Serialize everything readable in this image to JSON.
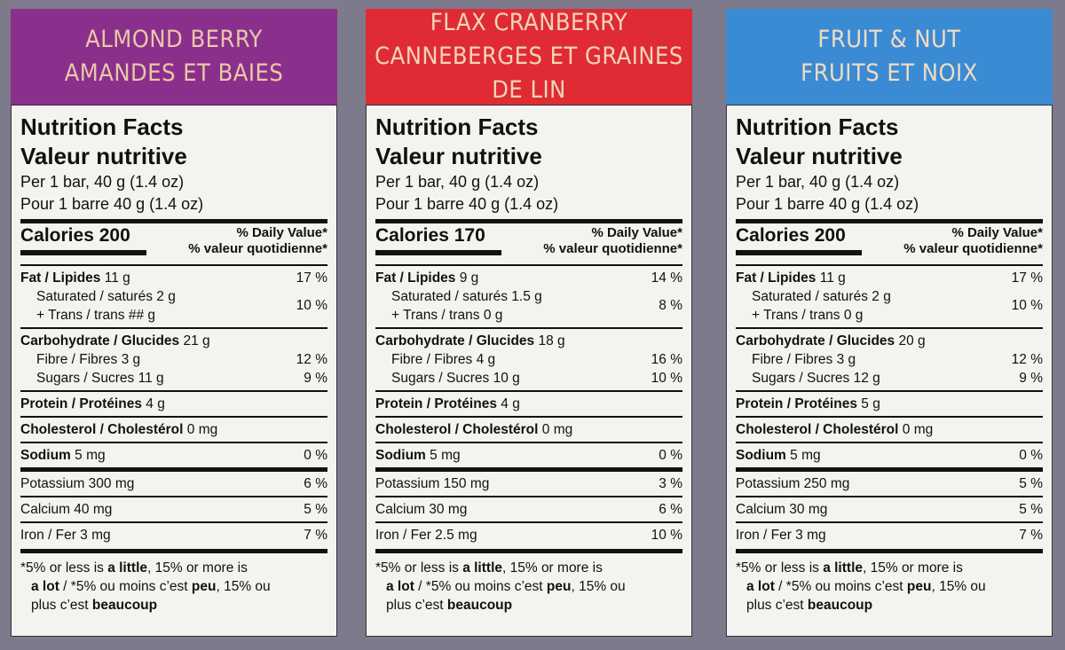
{
  "panels": [
    {
      "banner_color": "#8b2f8c",
      "banner_text_color": "#e8c9a5",
      "flavor_en": "ALMOND BERRY",
      "flavor_fr": "AMANDES ET BAIES",
      "title_en": "Nutrition Facts",
      "title_fr": "Valeur nutritive",
      "serving_en": "Per 1 bar, 40 g (1.4 oz)",
      "serving_fr": "Pour 1 barre 40 g (1.4 oz)",
      "calories": "Calories 200",
      "dv_en": "% Daily Value*",
      "dv_fr": "% valeur quotidienne*",
      "fat_label": "Fat / Lipides",
      "fat": "11 g",
      "fat_dv": "17 %",
      "sat_label": "Saturated / saturés",
      "sat": "2 g",
      "trans_label": "+ Trans / trans",
      "trans": "## g",
      "sat_trans_dv": "10 %",
      "carb_label": "Carbohydrate / Glucides",
      "carb": "21 g",
      "fibre_label": "Fibre / Fibres",
      "fibre": "3 g",
      "fibre_dv": "12 %",
      "sugars_label": "Sugars / Sucres",
      "sugars": "11 g",
      "sugars_dv": "9 %",
      "protein_label": "Protein / Protéines",
      "protein": "4 g",
      "chol_label": "Cholesterol / Cholestérol",
      "chol": "0 mg",
      "sodium_label": "Sodium",
      "sodium": "5 mg",
      "sodium_dv": "0 %",
      "potassium": "Potassium 300 mg",
      "potassium_dv": "6 %",
      "calcium": "Calcium 40 mg",
      "calcium_dv": "5 %",
      "iron": "Iron / Fer 3 mg",
      "iron_dv": "7 %",
      "foot1_a": "*5% or less is ",
      "foot1_b": "a little",
      "foot1_c": ", 15% or more is",
      "foot2_a": "a lot",
      "foot2_b": " / *5% ou moins c’est ",
      "foot2_c": "peu",
      "foot2_d": ", 15% ou",
      "foot3_a": "plus c’est ",
      "foot3_b": "beaucoup"
    },
    {
      "banner_color": "#e02b35",
      "banner_text_color": "#f1d6b6",
      "flavor_en": "FLAX CRANBERRY",
      "flavor_fr": "CANNEBERGES ET GRAINES DE LIN",
      "title_en": "Nutrition Facts",
      "title_fr": "Valeur nutritive",
      "serving_en": "Per 1 bar, 40 g (1.4 oz)",
      "serving_fr": "Pour 1 barre 40 g (1.4 oz)",
      "calories": "Calories 170",
      "dv_en": "% Daily Value*",
      "dv_fr": "% valeur quotidienne*",
      "fat_label": "Fat / Lipides",
      "fat": "9 g",
      "fat_dv": "14 %",
      "sat_label": "Saturated / saturés",
      "sat": "1.5 g",
      "trans_label": "+ Trans / trans",
      "trans": "0 g",
      "sat_trans_dv": "8 %",
      "carb_label": "Carbohydrate / Glucides",
      "carb": "18 g",
      "fibre_label": "Fibre / Fibres",
      "fibre": "4 g",
      "fibre_dv": "16 %",
      "sugars_label": "Sugars / Sucres",
      "sugars": "10 g",
      "sugars_dv": "10 %",
      "protein_label": "Protein / Protéines",
      "protein": "4 g",
      "chol_label": "Cholesterol / Cholestérol",
      "chol": "0 mg",
      "sodium_label": "Sodium",
      "sodium": "5 mg",
      "sodium_dv": "0 %",
      "potassium": "Potassium 150 mg",
      "potassium_dv": "3 %",
      "calcium": "Calcium 30 mg",
      "calcium_dv": "6 %",
      "iron": "Iron / Fer 2.5 mg",
      "iron_dv": "10 %",
      "foot1_a": "*5% or less is ",
      "foot1_b": "a little",
      "foot1_c": ", 15% or more is",
      "foot2_a": "a lot",
      "foot2_b": " / *5% ou moins c’est ",
      "foot2_c": "peu",
      "foot2_d": ", 15% ou",
      "foot3_a": "plus c’est ",
      "foot3_b": "beaucoup"
    },
    {
      "banner_color": "#3b8bd4",
      "banner_text_color": "#f0dcc2",
      "flavor_en": "FRUIT & NUT",
      "flavor_fr": "FRUITS ET NOIX",
      "title_en": "Nutrition Facts",
      "title_fr": "Valeur nutritive",
      "serving_en": "Per 1 bar, 40 g (1.4 oz)",
      "serving_fr": "Pour 1 barre 40 g (1.4 oz)",
      "calories": "Calories 200",
      "dv_en": "% Daily Value*",
      "dv_fr": "% valeur quotidienne*",
      "fat_label": "Fat / Lipides",
      "fat": "11 g",
      "fat_dv": "17 %",
      "sat_label": "Saturated / saturés",
      "sat": "2 g",
      "trans_label": "+ Trans / trans",
      "trans": "0 g",
      "sat_trans_dv": "10 %",
      "carb_label": "Carbohydrate / Glucides",
      "carb": "20 g",
      "fibre_label": "Fibre / Fibres",
      "fibre": "3 g",
      "fibre_dv": "12 %",
      "sugars_label": "Sugars / Sucres",
      "sugars": "12 g",
      "sugars_dv": "9 %",
      "protein_label": "Protein / Protéines",
      "protein": "5 g",
      "chol_label": "Cholesterol / Cholestérol",
      "chol": "0 mg",
      "sodium_label": "Sodium",
      "sodium": "5 mg",
      "sodium_dv": "0 %",
      "potassium": "Potassium 250 mg",
      "potassium_dv": "5 %",
      "calcium": "Calcium 30 mg",
      "calcium_dv": "5 %",
      "iron": "Iron / Fer 3 mg",
      "iron_dv": "7 %",
      "foot1_a": "*5% or less is ",
      "foot1_b": "a little",
      "foot1_c": ", 15% or more is",
      "foot2_a": "a lot",
      "foot2_b": " / *5% ou moins c’est ",
      "foot2_c": "peu",
      "foot2_d": ", 15% ou",
      "foot3_a": "plus c’est ",
      "foot3_b": "beaucoup"
    }
  ]
}
